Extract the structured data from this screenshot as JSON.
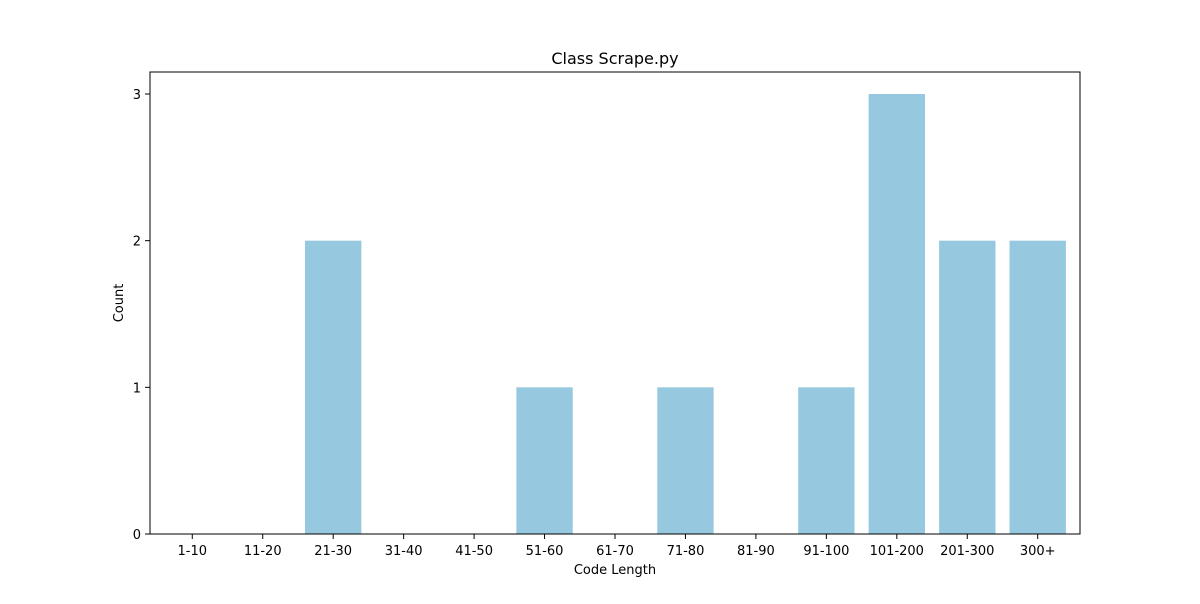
{
  "chart_data": {
    "type": "bar",
    "title": "Class Scrape.py",
    "xlabel": "Code Length",
    "ylabel": "Count",
    "categories": [
      "1-10",
      "11-20",
      "21-30",
      "31-40",
      "41-50",
      "51-60",
      "61-70",
      "71-80",
      "81-90",
      "91-100",
      "101-200",
      "201-300",
      "300+"
    ],
    "values": [
      0,
      0,
      2,
      0,
      0,
      1,
      0,
      1,
      0,
      1,
      3,
      2,
      2
    ],
    "ylim": [
      0,
      3.15
    ],
    "yticks": [
      0,
      1,
      2,
      3
    ],
    "grid": false,
    "bar_color": "#96c9df"
  }
}
